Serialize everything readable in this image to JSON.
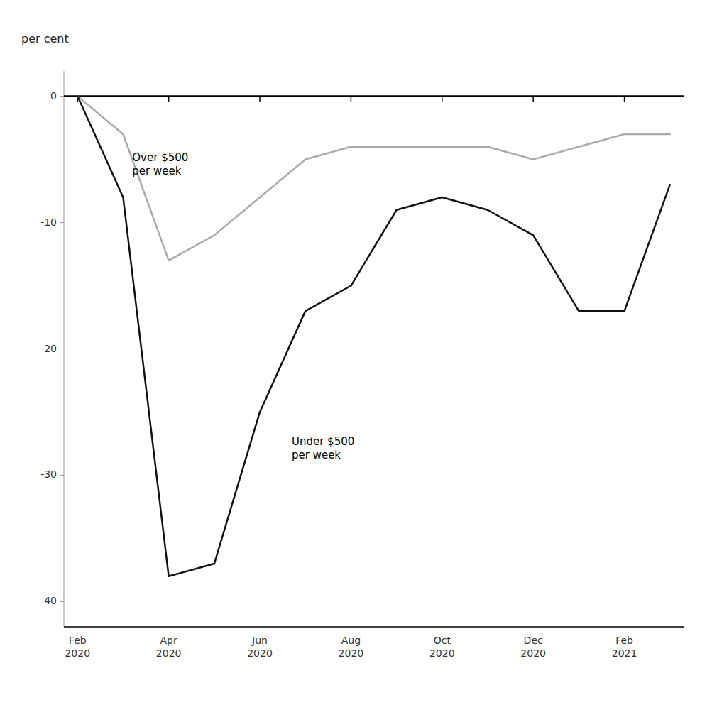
{
  "chart_data": {
    "type": "line",
    "ylabel": "per cent",
    "categories": [
      "Feb\n2020",
      null,
      "Apr\n2020",
      null,
      "Jun\n2020",
      null,
      "Aug\n2020",
      null,
      "Oct\n2020",
      null,
      "Dec\n2020",
      null,
      "Feb\n2021",
      null
    ],
    "series": [
      {
        "color": "#aaaaaa",
        "values": [
          0,
          -3,
          -13,
          -11,
          -8,
          -5,
          -4,
          -4,
          -4,
          -4,
          -5,
          -4,
          -3,
          -3
        ]
      },
      {
        "color": "#111111",
        "values": [
          0,
          -8,
          -38,
          -37,
          -25,
          -17,
          -15,
          -9,
          -8,
          -9,
          -11,
          -17,
          -17,
          -7
        ]
      }
    ],
    "ylim": [
      -42,
      2
    ],
    "yticks": [
      0,
      -10,
      -20,
      -30,
      -40
    ],
    "grid": false,
    "annotations": [
      {
        "text": "Over $500\nper week",
        "x": 1.2,
        "y": -4.5
      },
      {
        "text": "Under $500\nper week",
        "x": 4.7,
        "y": -27
      }
    ]
  }
}
